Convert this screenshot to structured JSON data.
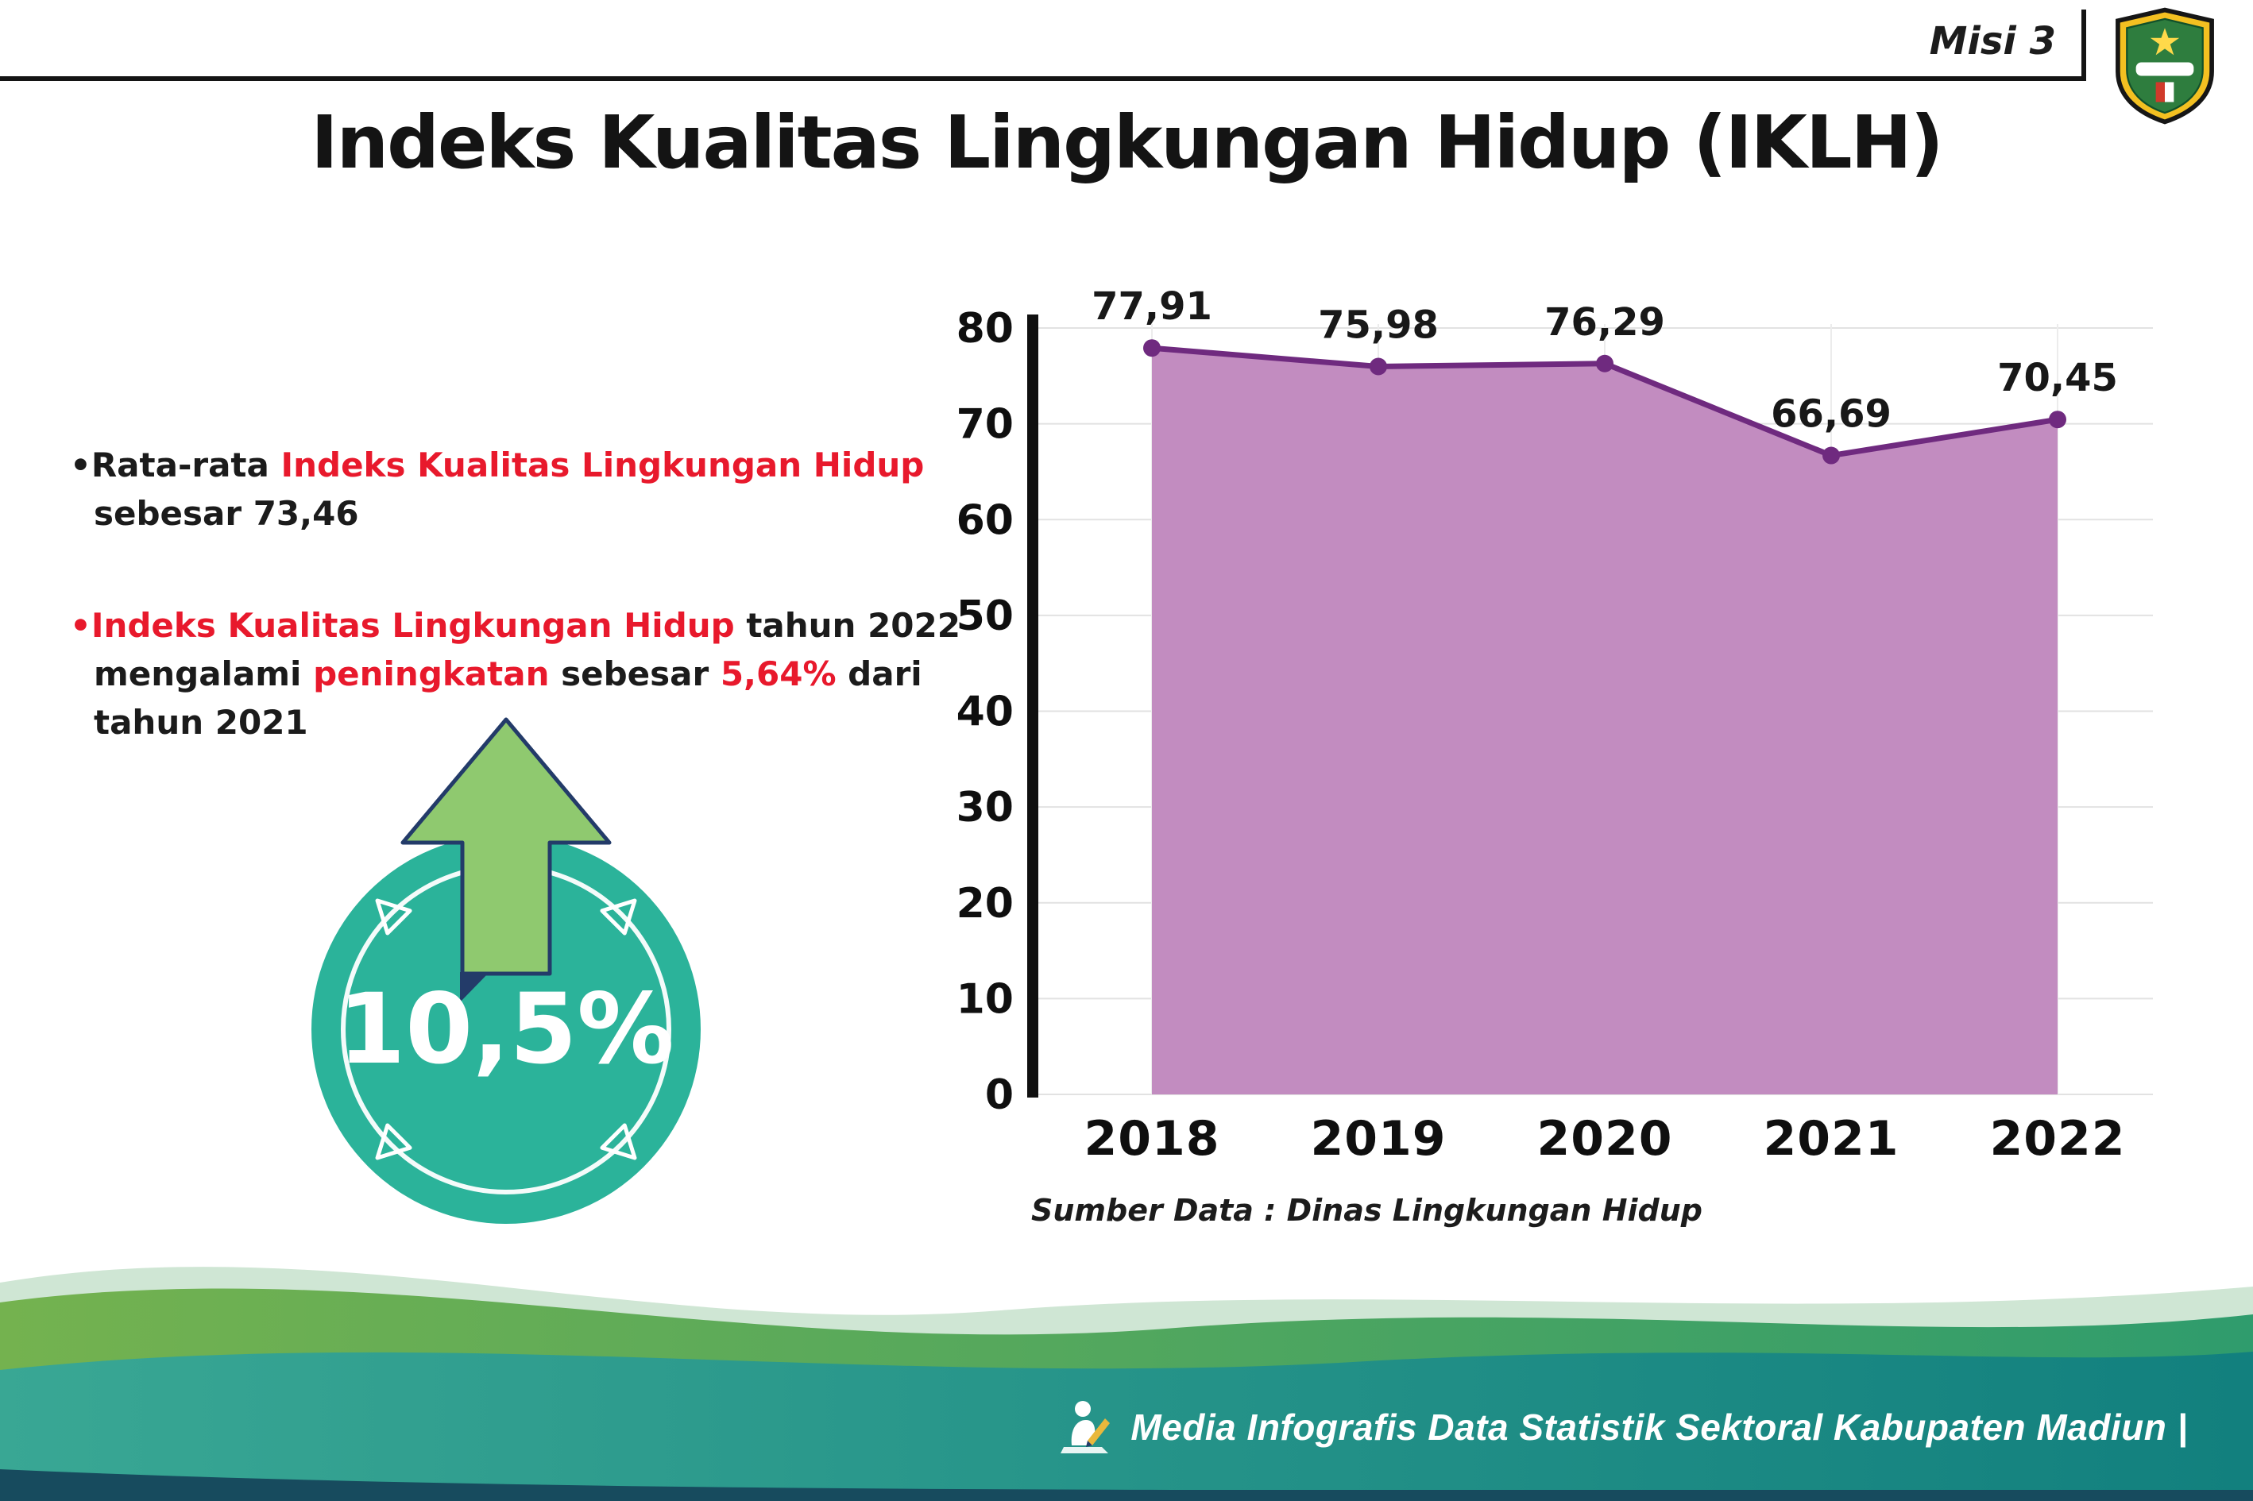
{
  "header": {
    "misi": "Misi 3",
    "title": "Indeks Kualitas Lingkungan Hidup (IKLH)"
  },
  "bullets": {
    "b1_pre": "•Rata-rata ",
    "b1_red": "Indeks Kualitas Lingkungan Hidup",
    "b1_post": "sebesar 73,46",
    "b2_red1": "•Indeks Kualitas Lingkungan Hidup",
    "b2_t1": " tahun 2022 mengalami ",
    "b2_red2": "peningkatan",
    "b2_t2": " sebesar ",
    "b2_red3": "5,64%",
    "b2_t3": " dari tahun 2021"
  },
  "badge": {
    "value": "10,5%",
    "circle_color": "#2bb39a",
    "arrow_color": "#8fc96f"
  },
  "chart_data": {
    "type": "area",
    "title": "Indeks Kualitas Lingkungan Hidup (IKLH)",
    "categories": [
      "2018",
      "2019",
      "2020",
      "2021",
      "2022"
    ],
    "values": [
      77.91,
      75.98,
      76.29,
      66.69,
      70.45
    ],
    "value_labels": [
      "77,91",
      "75,98",
      "76,29",
      "66,69",
      "70,45"
    ],
    "xlabel": "",
    "ylabel": "",
    "ylim": [
      0,
      80
    ],
    "yticks": [
      0,
      10,
      20,
      30,
      40,
      50,
      60,
      70,
      80
    ],
    "grid": true,
    "legend": "none",
    "fill_color": "#c28cc0",
    "line_color": "#6f2a7f",
    "source": "Sumber Data : Dinas Lingkungan Hidup"
  },
  "footer": {
    "text": "Media Infografis Data Statistik Sektoral Kabupaten Madiun |",
    "band_color": "#2b9d8d",
    "accent_red": "#e8192c"
  }
}
